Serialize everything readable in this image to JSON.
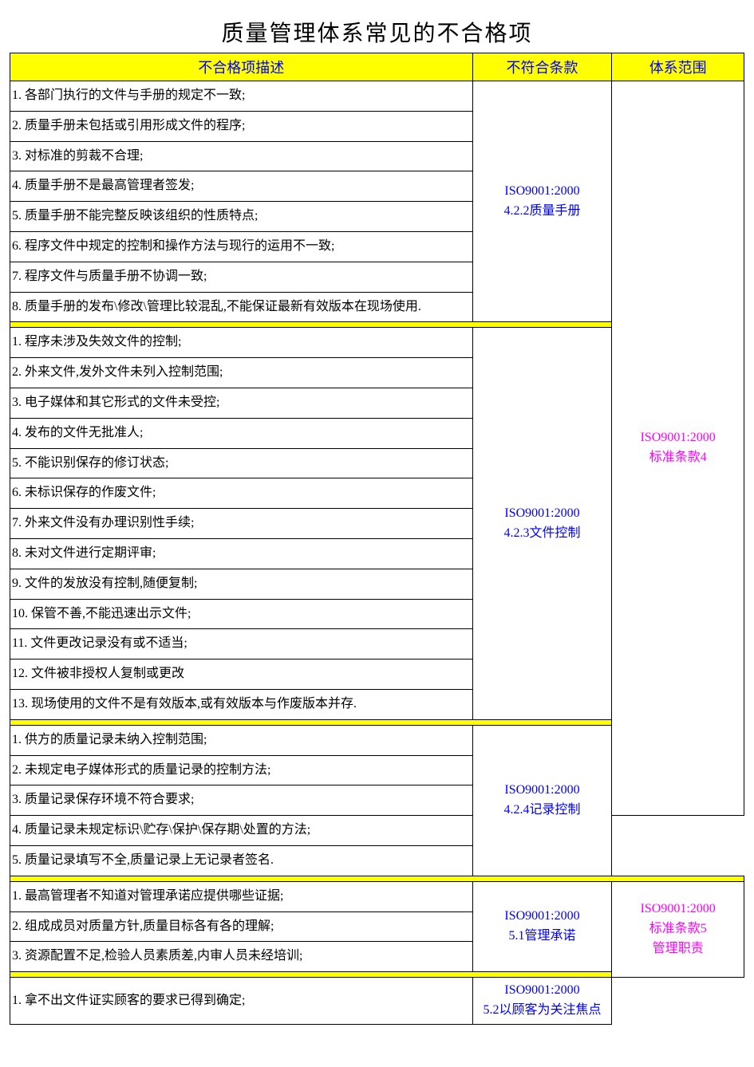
{
  "title": "质量管理体系常见的不合格项",
  "headers": {
    "desc": "不合格项描述",
    "clause": "不符合条款",
    "scope": "体系范围"
  },
  "colors": {
    "header_bg": "#ffff00",
    "header_text": "#0000ff",
    "clause_text": "#0000ff",
    "scope_text": "#ff00ff",
    "separator_bg": "#ffff00",
    "border": "#000000",
    "page_bg": "#ffffff"
  },
  "fontsizes": {
    "title": 28,
    "header": 18,
    "body": 16
  },
  "column_widths_pct": {
    "desc": 63,
    "clause": 19,
    "scope": 18
  },
  "scopes": [
    {
      "scope_label": "ISO9001:2000\n标准条款4",
      "groups": [
        {
          "clause_label": "ISO9001:2000\n4.2.2质量手册",
          "items": [
            "1. 各部门执行的文件与手册的规定不一致;",
            "2. 质量手册未包括或引用形成文件的程序;",
            "3. 对标准的剪裁不合理;",
            "4. 质量手册不是最高管理者签发;",
            "5. 质量手册不能完整反映该组织的性质特点;",
            "6. 程序文件中规定的控制和操作方法与现行的运用不一致;",
            "7. 程序文件与质量手册不协调一致;",
            "8. 质量手册的发布\\修改\\管理比较混乱,不能保证最新有效版本在现场使用."
          ]
        },
        {
          "clause_label": "ISO9001:2000\n4.2.3文件控制",
          "items": [
            "1. 程序未涉及失效文件的控制;",
            "2. 外来文件,发外文件未列入控制范围;",
            "3. 电子媒体和其它形式的文件未受控;",
            "4. 发布的文件无批准人;",
            "5. 不能识别保存的修订状态;",
            "6. 未标识保存的作废文件;",
            "7. 外来文件没有办理识别性手续;",
            "8. 未对文件进行定期评审;",
            "9. 文件的发放没有控制,随便复制;",
            "10. 保管不善,不能迅速出示文件;",
            "11. 文件更改记录没有或不适当;",
            "12. 文件被非授权人复制或更改",
            "13. 现场使用的文件不是有效版本,或有效版本与作废版本并存."
          ]
        },
        {
          "clause_label": "ISO9001:2000\n4.2.4记录控制",
          "items": [
            "1. 供方的质量记录未纳入控制范围;",
            "2. 未规定电子媒体形式的质量记录的控制方法;",
            "3. 质量记录保存环境不符合要求;",
            "4. 质量记录未规定标识\\贮存\\保护\\保存期\\处置的方法;",
            "5. 质量记录填写不全,质量记录上无记录者签名."
          ]
        }
      ]
    },
    {
      "scope_label": "ISO9001:2000\n标准条款5\n管理职责",
      "groups": [
        {
          "clause_label": "ISO9001:2000\n5.1管理承诺",
          "items": [
            "1. 最高管理者不知道对管理承诺应提供哪些证据;",
            "2. 组成成员对质量方针,质量目标各有各的理解;",
            "3. 资源配置不足,检验人员素质差,内审人员未经培训;"
          ]
        },
        {
          "clause_label": "ISO9001:2000\n5.2以顾客为关注焦点",
          "items": [
            "1. 拿不出文件证实顾客的要求已得到确定;"
          ]
        }
      ]
    }
  ]
}
